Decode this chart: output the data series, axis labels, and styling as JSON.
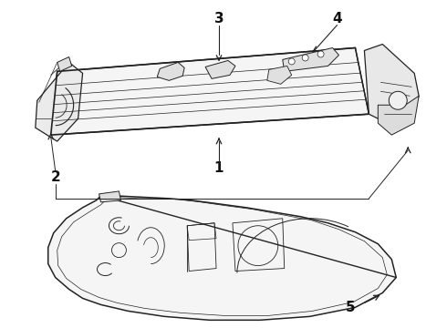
{
  "bg_color": "#ffffff",
  "line_color": "#222222",
  "label_color": "#111111",
  "figsize": [
    4.9,
    3.6
  ],
  "dpi": 100
}
